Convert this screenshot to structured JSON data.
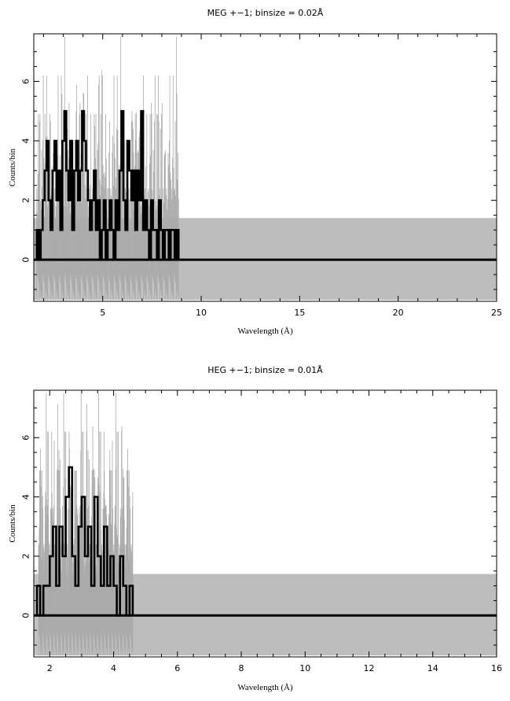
{
  "chart_data": [
    {
      "type": "histogram",
      "title": "MEG +−1; binsize = 0.02Å",
      "xlabel": "Wavelength (Å)",
      "ylabel": "Counts/bin",
      "xlim": [
        1.5,
        25
      ],
      "ylim": [
        -1.4,
        7.6
      ],
      "xticks": [
        5,
        10,
        15,
        20,
        25
      ],
      "yticks": [
        0,
        2,
        4,
        6
      ],
      "grey_band": {
        "low": -1.35,
        "high": 1.4,
        "x_from": 8.9,
        "x_to": 25
      },
      "error_upper": [
        2.4,
        2.4,
        3.6,
        4.9,
        5.0,
        6.2,
        4.9,
        3.6,
        2.4,
        3.7,
        4.9,
        6.2,
        6.2,
        3.6,
        2.4,
        4.9,
        3.6,
        7.5,
        6.2,
        4.9,
        3.6,
        2.4,
        4.9,
        3.7,
        4.9,
        6.2,
        2.4,
        2.4,
        2.4,
        3.7,
        3.6,
        4.9,
        2.4,
        2.4
      ],
      "series": [
        {
          "name": "",
          "x": [
            1.7,
            1.8,
            1.9,
            2.0,
            2.1,
            2.2,
            2.3,
            2.4,
            2.5,
            2.6,
            2.7,
            2.8,
            2.9,
            3.0,
            3.1,
            3.2,
            3.3,
            3.4,
            3.5,
            3.6,
            3.7,
            3.8,
            3.9,
            4.0,
            4.1,
            4.2,
            4.3,
            4.4,
            4.5,
            4.6,
            4.7,
            4.8,
            4.9,
            5.0,
            5.1,
            5.2,
            5.3,
            5.4,
            5.5,
            5.6,
            5.7,
            5.8,
            5.9,
            6.0,
            6.1,
            6.2,
            6.3,
            6.4,
            6.5,
            6.6,
            6.7,
            6.8,
            6.9,
            7.0,
            7.1,
            7.2,
            7.3,
            7.4,
            7.5,
            7.6,
            7.7,
            7.8,
            7.9,
            8.0,
            8.1,
            8.2,
            8.3,
            8.4,
            8.5,
            8.6,
            8.7,
            8.8
          ],
          "y": [
            1,
            0,
            1,
            2,
            3,
            4,
            2,
            1,
            3,
            4,
            2,
            3,
            1,
            4,
            5,
            3,
            2,
            4,
            1,
            3,
            4,
            2,
            3,
            5,
            4,
            3,
            2,
            1,
            2,
            3,
            1,
            2,
            0,
            1,
            2,
            0,
            1,
            2,
            1,
            0,
            2,
            1,
            3,
            5,
            2,
            1,
            4,
            3,
            2,
            3,
            1,
            3,
            2,
            5,
            1,
            2,
            1,
            0,
            2,
            1,
            1,
            0,
            2,
            1,
            0,
            1,
            1,
            0,
            1,
            1,
            0,
            1
          ]
        }
      ]
    },
    {
      "type": "histogram",
      "title": "HEG +−1; binsize = 0.01Å",
      "xlabel": "Wavelength (Å)",
      "ylabel": "Counts/bin",
      "xlim": [
        1.5,
        16
      ],
      "ylim": [
        -1.4,
        7.6
      ],
      "xticks": [
        2,
        4,
        6,
        8,
        10,
        12,
        14,
        16
      ],
      "yticks": [
        0,
        2,
        4,
        6
      ],
      "grey_band": {
        "low": -1.35,
        "high": 1.4,
        "x_from": 4.6,
        "x_to": 16
      },
      "error_upper": [
        2.4,
        3.6,
        3.7,
        4.9,
        6.2,
        7.5,
        4.9,
        3.6,
        6.2,
        4.9,
        3.7,
        6.2,
        3.6,
        2.4,
        2.4,
        2.4
      ],
      "series": [
        {
          "name": "",
          "x": [
            1.65,
            1.75,
            1.85,
            1.95,
            2.05,
            2.15,
            2.25,
            2.35,
            2.45,
            2.55,
            2.65,
            2.75,
            2.85,
            2.95,
            3.05,
            3.15,
            3.25,
            3.35,
            3.45,
            3.55,
            3.65,
            3.75,
            3.85,
            3.95,
            4.05,
            4.15,
            4.25,
            4.35,
            4.45,
            4.55
          ],
          "y": [
            1,
            0,
            1,
            1,
            2,
            3,
            1,
            3,
            2,
            4,
            5,
            2,
            1,
            3,
            4,
            2,
            3,
            1,
            4,
            2,
            1,
            3,
            1,
            2,
            1,
            0,
            2,
            1,
            0,
            1
          ]
        }
      ]
    }
  ]
}
